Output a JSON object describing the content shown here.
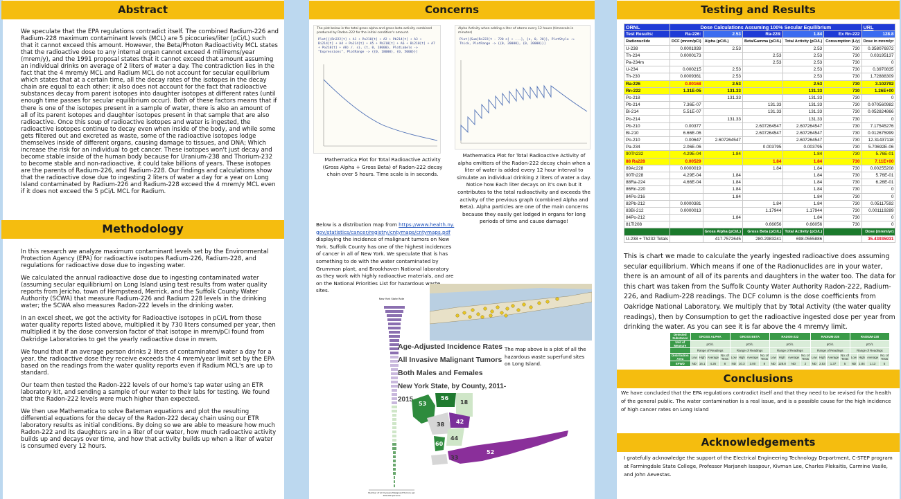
{
  "abstract": {
    "title": "Abstract",
    "body": "We speculate that the EPA regulations contradict itself. The combined Radium-226 and Radium-228 maximum contaminant levels (MCL) are 5 picocuries/liter (pCi/L) such that it cannot exceed this amount. However, the Beta/Photon Radioactivity MCL states that the radioactive dose to any internal organ cannot exceed 4 millirems/year (mrem/y), and the 1991 proposal states that it cannot exceed that amount assuming an individual drinks on average of 2 liters of water a day. The contradiction lies in the fact that the 4 mrem/y MCL and Radium MCL do not account for secular equilibrium which states that at a certain time, all the decay rates of the isotopes in the decay chain are equal to each other; it also does not account for the fact that radioactive substances decay from parent isotopes into daughter isotopes at different rates (until enough time passes for secular equilibrium occur). Both of these factors means that if there is one of the isotopes present in a sample of water, there is also an amount of all of its parent isotopes and daughter isotopes present in that sample that are also radioactive. Once this soup of radioactive isotopes and water is ingested, the radioactive isotopes continue to decay even when inside of the body, and while some gets filtered out and excreted as waste, some of the radioactive isotopes lodge themselves inside of different organs, causing damage to tissues, and DNA; Which increase the risk for an individual to get cancer. These isotopes won't just decay and become stable inside of the human body because for Uranium-238 and Thorium-232 to become stable and non-radioactive, it could take billions of years. These isotopes are the parents of Radium-226, and Radium-228. Our findings and calculations show that the radioactive dose due to ingesting 2 liters of water a day for a year on Long Island contaminated by Radium-226 and Radium-228 exceed the 4 mrem/y MCL even if it does not exceed the 5 pCi/L MCL for Radium."
  },
  "methodology": {
    "title": "Methodology",
    "paragraphs": [
      "In this research we analyze maximum contaminant levels set by the Environmental Protection Agency (EPA) for radioactive isotopes Radium-226, Radium-228, and regulations for radioactive dose due to ingesting water.",
      "We calculated the annual radioactive dose due to ingesting contaminated water (assuming secular equilibrium) on Long Island using test results from water quality reports from Jericho, town of Hempstead, Merrick, and the Suffolk County Water Authority (SCWA) that measure Radium-226 and Radium 228 levels in the drinking water; the SCWA also measures Radon-222 levels in the drinking water.",
      "In an excel sheet, we got the activity for Radioactive isotopes in pCi/L from those water quality reports listed above, multiplied it by 730 liters consumed per year, then multiplied it by the dose conversion factor of that isotope in mrem/pCi found from Oakridge Laboratories to get the yearly radioactive dose in mrem.",
      "We found that if an average person drinks 2 liters of contaminated water a day for a year, the radioactive dose they receive exceeds the 4 mrem/year limit set by the EPA based on the readings from the water quality reports even if Radium MCL's are up to standard.",
      "Our team then tested the Radon-222 levels of our home's tap water using an ETR laboratory kit, and sending a sample of our water to their labs for testing. We found that the Radon-222 levels were much higher than expected.",
      "We then use Mathematica to solve Bateman equations and plot the resulting differential equations for the decay of the Radon-222 decay chain using our ETR laboratory results as initial conditions. By doing so we are able to measure how much Radon-222 and its daughters are in a liter of our water, how much radioactive activity builds up and decays over time, and how that activity builds up when a liter of water is consumed every 12 hours."
    ]
  },
  "concerns": {
    "title": "Concerns",
    "plot1_header": "The plot below is the total gross alpha and gross beta activity combined produced by Radon-222 for the initial condition's amount.",
    "plot1_code": "Plot[{(Rn222[t] + A1 + Po218[t] + A2 + Pb214[t] + A3 + Bi214[t] + A4 + Po214[t] + A5 + Pb210[t] + A6 + Bi210[t] + A7 + Po210[t] + A8) /. s}, {t, 0, 18000}, PlotLabels -> \"Expressions\", PlotRange -> {{0, 18000}, {0, 5000}}]",
    "plot2_header": "Alpha Activity when adding a liter of atoms every 12 hours (timescale in minutes)",
    "plot2_code": "Plot[{Sum[Rn222[t - 720 n] + ...], {n, 0, 20}}, PlotStyle -> Thick, PlotRange -> {{0, 20000}, {0, 20000}}]",
    "caption1": "Mathematica Plot for Total Radioactive Activity (Gross Alpha + Gross Beta) of Radon-222 decay chain over 5 hours. Time scale is in seconds.",
    "caption2": "Mathematica Plot for Total Radioactive Activity of alpha emitters of the Radon-222 decay chain when a liter of water is added every 12 hour interval to simulate an individual drinking 2 liters of water a day. Notice how Each liter decays on it's own but it contributes to the total radioactivity and exceeds the activity of the previous graph (combined Alpha and Beta). Alpha particles are one of the main concerns because they easily get lodged in organs for long periods of time and cause damage!",
    "map_intro_1": "Below is a distribution map from",
    "map_link": "https://www.health.ny.gov/statistics/cancer/registry/cntymaps/cntymaps.pdf",
    "map_intro_2": "displaying the incidence of malignant tumors on New York. Suffolk County has one of the highest incidences of cancer in all of New York. We speculate that is has something to do with the water contaminated by Grumman plant, and Brookhaven National laboratory as they work with highly radioactive materials, and are on the National Priorities List for hazardous waste sites.",
    "map_title_1": "Age-Adjusted Incidence Rates",
    "map_title_2": "All Invasive Malignant Tumors",
    "map_title_3": "Both Males and Females",
    "map_title_4": "New York State, by County, 2011-2015",
    "map_caption": "The map above is a plot of all the hazardous waste superfund sites on Long Island.",
    "bar_header": "New York State Rate",
    "bar_axis": "Number of All Invasive Malignant Tumors per 100,000 persons",
    "county_labels": [
      "53",
      "56",
      "18",
      "38",
      "42",
      "44",
      "60",
      "33",
      "52"
    ]
  },
  "testing": {
    "title": "Testing and Results",
    "table_header": {
      "c1": "ORNL",
      "c2": "Dose Calculations Assuming 100% Secular Equilibrium",
      "c3": "URL"
    },
    "test_row": [
      "Test Results:",
      "Ra-226:",
      "2.53",
      "Ra-228:",
      "1.84",
      "Ex Rn-222",
      "128.8"
    ],
    "col_headers": [
      "Radionuclide",
      "DCF (mrem/pCi)",
      "Alpha (pCi/L)",
      "Beta/Gamma (pCi/L)",
      "Total Activity (pCi/L)",
      "Consumption (L/y)",
      "Dose in mrem/yr"
    ],
    "rows": [
      [
        "U-238",
        "0.0001939",
        "2.53",
        "",
        "2.53",
        "730",
        "0.358076972"
      ],
      [
        "Th-234",
        "0.0000173",
        "",
        "2.53",
        "2.53",
        "730",
        "0.03195137"
      ],
      [
        "Pa-234m",
        "",
        "",
        "2.53",
        "2.53",
        "730",
        "0"
      ],
      [
        "U-234",
        "0.000215",
        "2.53",
        "",
        "2.53",
        "730",
        "0.3970835"
      ],
      [
        "Th-230",
        "0.0009361",
        "2.53",
        "",
        "2.53",
        "730",
        "1.72888309"
      ],
      [
        "Ra-226",
        "0.00168",
        "2.53",
        "",
        "2.53",
        "730",
        "3.102792"
      ],
      [
        "Rn-222",
        "1.31E-05",
        "131.33",
        "",
        "131.33",
        "730",
        "1.26E+00"
      ],
      [
        "Po-218",
        "",
        "131.33",
        "",
        "131.33",
        "730",
        "0"
      ],
      [
        "Pb-214",
        "7.36E-07",
        "",
        "131.33",
        "131.33",
        "730",
        "0.070560982"
      ],
      [
        "Bi-214",
        "5.51E-07",
        "",
        "131.33",
        "131.33",
        "730",
        "0.052824866"
      ],
      [
        "Po-214",
        "",
        "131.33",
        "",
        "131.33",
        "730",
        "0"
      ],
      [
        "Pb-210",
        "0.00377",
        "",
        "2.607264547",
        "2.607264547",
        "730",
        "7.17545276"
      ],
      [
        "Bi-210",
        "6.66E-06",
        "",
        "2.607264547",
        "2.607264547",
        "730",
        "0.012675999"
      ],
      [
        "Po-210",
        "0.00647",
        "2.607264547",
        "",
        "2.607264547",
        "730",
        "12.31437118"
      ],
      [
        "Pa-234",
        "2.06E-06",
        "",
        "0.003795",
        "0.003795",
        "730",
        "5.70692E-06"
      ],
      [
        "90Th232",
        "4.29E-04",
        "1.84",
        "",
        "1.84",
        "730",
        "5.76E-01"
      ],
      [
        "88 Ra228",
        "0.00529",
        "",
        "1.84",
        "1.84",
        "730",
        "7.11E+00"
      ],
      [
        "89Ac228",
        "0.0000019",
        "",
        "1.84",
        "1.84",
        "730",
        "0.00255208"
      ],
      [
        "90Th228",
        "4.29E-04",
        "1.84",
        "",
        "1.84",
        "730",
        "5.76E-01"
      ],
      [
        "88Ra-224",
        "4.66E-04",
        "1.84",
        "",
        "1.84",
        "730",
        "6.26E-01"
      ],
      [
        "86Rn-220",
        "",
        "1.84",
        "",
        "1.84",
        "730",
        "0"
      ],
      [
        "84Po-216",
        "",
        "1.84",
        "",
        "1.84",
        "730",
        "0"
      ],
      [
        "82Pb-212",
        "0.0000381",
        "",
        "1.84",
        "1.84",
        "730",
        "0.05117592"
      ],
      [
        "83Bi-212",
        "0.0000013",
        "",
        "1.17944",
        "1.17944",
        "730",
        "0.001119289"
      ],
      [
        "84Po-212",
        "",
        "1.84",
        "",
        "1.84",
        "730",
        "0"
      ],
      [
        "81Tl208",
        "",
        "",
        "0.66056",
        "0.66056",
        "730",
        "0"
      ]
    ],
    "totals_header": [
      "",
      "",
      "Gross Alpha (pCi/L)",
      "Gross Beta (pCi/L)",
      "Total Activity (pCi/L)",
      "",
      "Dose (mrem/yr)"
    ],
    "totals_row": [
      "U-238 + Th232 Totals",
      "",
      "417.7572645",
      "280.2983241",
      "698.0555886",
      "",
      "35.43935931"
    ],
    "description": "This is chart we made to calculate the yearly ingested radioactive does assuming secular equilibrium. Which means if one of the Radionuclides are in your water, there is an amount of all of its parents and daughters in the water too. The data for this chart was taken from the Suffolk County Water Authority Radon-222, Radium-226, and Radium-228 readings. The DCF column is the dose coefficients from Oakridge National Laboratory. We multiply that by Total Activity (the water quality readings), then by Consumption to get the radioactive ingested dose per year from drinking the water. As you can see it is far above the 4 mrem/y limit.",
    "wq": {
      "row1": [
        "Detected Substance",
        "GROSS ALPHA",
        "GROSS BETA",
        "RADON-222",
        "RADIUM-226",
        "RADIUM-228"
      ],
      "row2": [
        "Unit of Measure",
        "pCi/L",
        "pCi/L",
        "pCi/L",
        "pCi/L",
        "pCi/L"
      ],
      "row3": [
        "",
        "Range of Readings",
        "Range of Readings",
        "Range of Readings",
        "Range of Readings",
        "Range of Readings"
      ],
      "row4": [
        "Distribution Area",
        "Low",
        "High",
        "Average",
        "No. of Tests",
        "Low",
        "High",
        "Average",
        "No. of Tests",
        "Low",
        "High",
        "Average",
        "No. of Tests",
        "Low",
        "High",
        "Average",
        "No. of Tests",
        "Low",
        "High",
        "Average",
        "No. of Tests"
      ],
      "row5": [
        "EFWD",
        "ND",
        "16.1",
        "4.26",
        "8",
        "ND",
        "10.3",
        "3.00",
        "8",
        "ND",
        "128.8",
        "ND",
        "2",
        "ND",
        "2.53",
        "1.37",
        "5",
        "ND",
        "1.84",
        "1.13",
        "5"
      ]
    }
  },
  "conclusions": {
    "title": "Conclusions",
    "body": "We have concluded that the EPA regulations contradict itself and that they need to be revised for the health of the general public. The water contamination is a real issue, and is a possible cause for the high incidence of high cancer rates on Long Island"
  },
  "acknowledgements": {
    "title": "Acknowledgements",
    "body": "I gratefully acknowledge the support of the Electrical Engineering Technology Department, C-STEP program at Farmingdale State College, Professor Marjaneh Issapour, Kivman Lee, Charles Plekaitis, Carmine Vasile, and John Aevestas."
  },
  "colors": {
    "header_bg": "#f5bd0f",
    "page_bg": "#bcd8ef",
    "table_blue": "#1f3bd6",
    "highlight": "#ffff00",
    "dose_red": "#e4001b"
  }
}
